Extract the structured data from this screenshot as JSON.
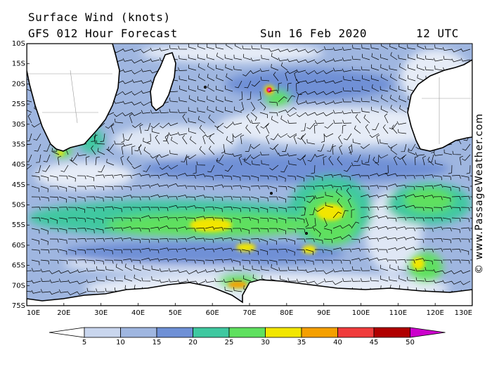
{
  "header": {
    "title": "Surface Wind (knots)",
    "model": "GFS 012 Hour Forecast",
    "date": "Sun 16 Feb 2020",
    "time": "12 UTC"
  },
  "credit": "© www.PassageWeather.com",
  "map": {
    "region": "South Indian Ocean",
    "lat_labels": [
      "10S",
      "15S",
      "20S",
      "25S",
      "30S",
      "35S",
      "40S",
      "45S",
      "50S",
      "55S",
      "60S",
      "65S",
      "70S",
      "75S"
    ],
    "lon_labels": [
      "10E",
      "20E",
      "30E",
      "40E",
      "50E",
      "60E",
      "70E",
      "80E",
      "90E",
      "100E",
      "110E",
      "120E",
      "130E"
    ]
  },
  "legend": {
    "labels": [
      "5",
      "10",
      "15",
      "20",
      "25",
      "30",
      "35",
      "40",
      "45",
      "50"
    ],
    "colors": [
      "#ffffff",
      "#c9d6ee",
      "#9fb6e0",
      "#6f90d6",
      "#3fc8a0",
      "#5fe05f",
      "#f2e600",
      "#f5a000",
      "#f03c3c",
      "#b00000",
      "#cc00cc"
    ]
  }
}
